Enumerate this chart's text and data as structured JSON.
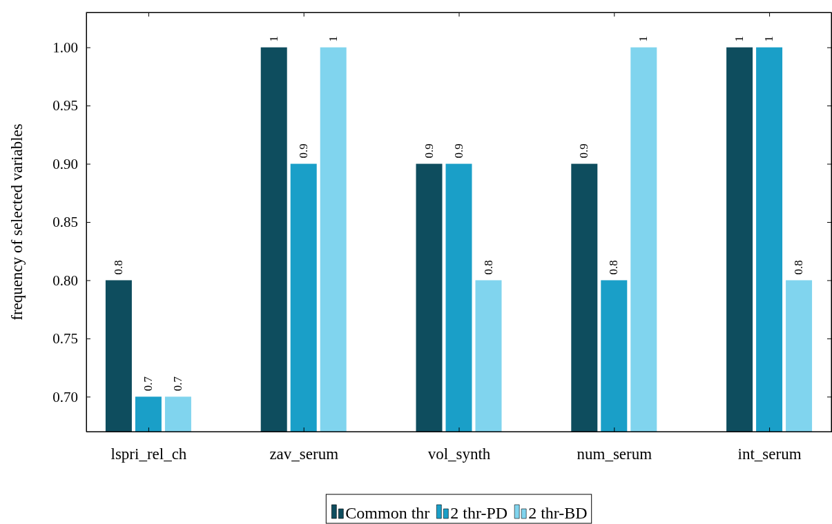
{
  "chart_data": {
    "type": "bar",
    "ylabel": "frequency of selected variables",
    "categories": [
      "lspri_rel_ch",
      "zav_serum",
      "vol_synth",
      "num_serum",
      "int_serum"
    ],
    "series": [
      {
        "name": "Common thr",
        "color": "#0e4d5e",
        "values": [
          0.8,
          1,
          0.9,
          0.9,
          1
        ]
      },
      {
        "name": "2 thr-PD",
        "color": "#1a9fc8",
        "values": [
          0.7,
          0.9,
          0.9,
          0.8,
          1
        ]
      },
      {
        "name": "2 thr-BD",
        "color": "#80d4ee",
        "values": [
          0.7,
          1,
          0.8,
          1,
          0.8
        ]
      }
    ],
    "ylim": [
      0.67,
      1.03
    ],
    "yticks": [
      {
        "value": 0.7,
        "label": "0.70"
      },
      {
        "value": 0.75,
        "label": "0.75"
      },
      {
        "value": 0.8,
        "label": "0.80"
      },
      {
        "value": 0.85,
        "label": "0.85"
      },
      {
        "value": 0.9,
        "label": "0.90"
      },
      {
        "value": 0.95,
        "label": "0.95"
      },
      {
        "value": 1,
        "label": "1.00"
      }
    ],
    "data_labels": true,
    "legend": "bottom",
    "grid": false
  }
}
